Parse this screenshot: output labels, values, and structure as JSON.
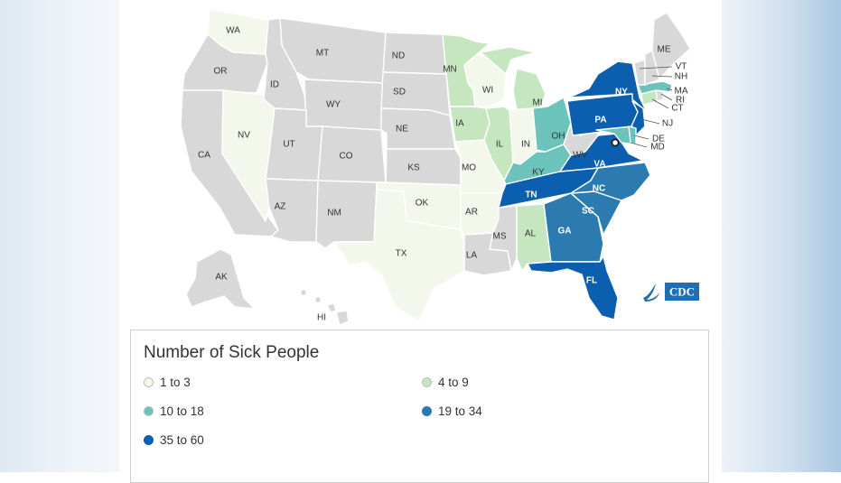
{
  "legend": {
    "title": "Number of Sick People",
    "items": [
      {
        "label": "1 to 3",
        "color": "#f4f7ec"
      },
      {
        "label": "4 to 9",
        "color": "#c6e6c0"
      },
      {
        "label": "10 to 18",
        "color": "#6cc3bc"
      },
      {
        "label": "19 to 34",
        "color": "#2b7bb0"
      },
      {
        "label": "35 to 60",
        "color": "#0b5fae"
      }
    ]
  },
  "no_cases_color": "#d8d8d8",
  "states": {
    "WA": {
      "label": "WA",
      "bin": 0
    },
    "OR": {
      "label": "OR",
      "bin": null
    },
    "CA": {
      "label": "CA",
      "bin": null
    },
    "ID": {
      "label": "ID",
      "bin": null
    },
    "NV": {
      "label": "NV",
      "bin": 0
    },
    "MT": {
      "label": "MT",
      "bin": null
    },
    "WY": {
      "label": "WY",
      "bin": null
    },
    "UT": {
      "label": "UT",
      "bin": null
    },
    "AZ": {
      "label": "AZ",
      "bin": null
    },
    "CO": {
      "label": "CO",
      "bin": null
    },
    "NM": {
      "label": "NM",
      "bin": null
    },
    "ND": {
      "label": "ND",
      "bin": null
    },
    "SD": {
      "label": "SD",
      "bin": null
    },
    "NE": {
      "label": "NE",
      "bin": null
    },
    "KS": {
      "label": "KS",
      "bin": null
    },
    "OK": {
      "label": "OK",
      "bin": 0
    },
    "TX": {
      "label": "TX",
      "bin": 0
    },
    "MN": {
      "label": "MN",
      "bin": 1
    },
    "IA": {
      "label": "IA",
      "bin": 1
    },
    "MO": {
      "label": "MO",
      "bin": 0
    },
    "AR": {
      "label": "AR",
      "bin": 0
    },
    "LA": {
      "label": "LA",
      "bin": null
    },
    "WI": {
      "label": "WI",
      "bin": 0
    },
    "IL": {
      "label": "IL",
      "bin": 1
    },
    "MI": {
      "label": "MI",
      "bin": 1
    },
    "IN": {
      "label": "IN",
      "bin": 0
    },
    "OH": {
      "label": "OH",
      "bin": 2
    },
    "KY": {
      "label": "KY",
      "bin": 2
    },
    "TN": {
      "label": "TN",
      "bin": 4
    },
    "MS": {
      "label": "MS",
      "bin": null
    },
    "AL": {
      "label": "AL",
      "bin": 1
    },
    "GA": {
      "label": "GA",
      "bin": 3
    },
    "FL": {
      "label": "FL",
      "bin": 4
    },
    "SC": {
      "label": "SC",
      "bin": 3
    },
    "NC": {
      "label": "NC",
      "bin": 3
    },
    "VA": {
      "label": "VA",
      "bin": 4
    },
    "WV": {
      "label": "WV",
      "bin": null
    },
    "PA": {
      "label": "PA",
      "bin": 4
    },
    "NY": {
      "label": "NY",
      "bin": 4
    },
    "NJ": {
      "label": "NJ",
      "bin": 4
    },
    "DE": {
      "label": "DE",
      "bin": 2
    },
    "MD": {
      "label": "MD",
      "bin": 2
    },
    "CT": {
      "label": "CT",
      "bin": 1
    },
    "RI": {
      "label": "RI",
      "bin": null
    },
    "MA": {
      "label": "MA",
      "bin": 2
    },
    "VT": {
      "label": "VT",
      "bin": null
    },
    "NH": {
      "label": "NH",
      "bin": null
    },
    "ME": {
      "label": "ME",
      "bin": null
    },
    "AK": {
      "label": "AK",
      "bin": null
    },
    "HI": {
      "label": "HI",
      "bin": null
    },
    "DC": {
      "label": "",
      "bin": null
    }
  },
  "logo": {
    "text": "CDC"
  }
}
